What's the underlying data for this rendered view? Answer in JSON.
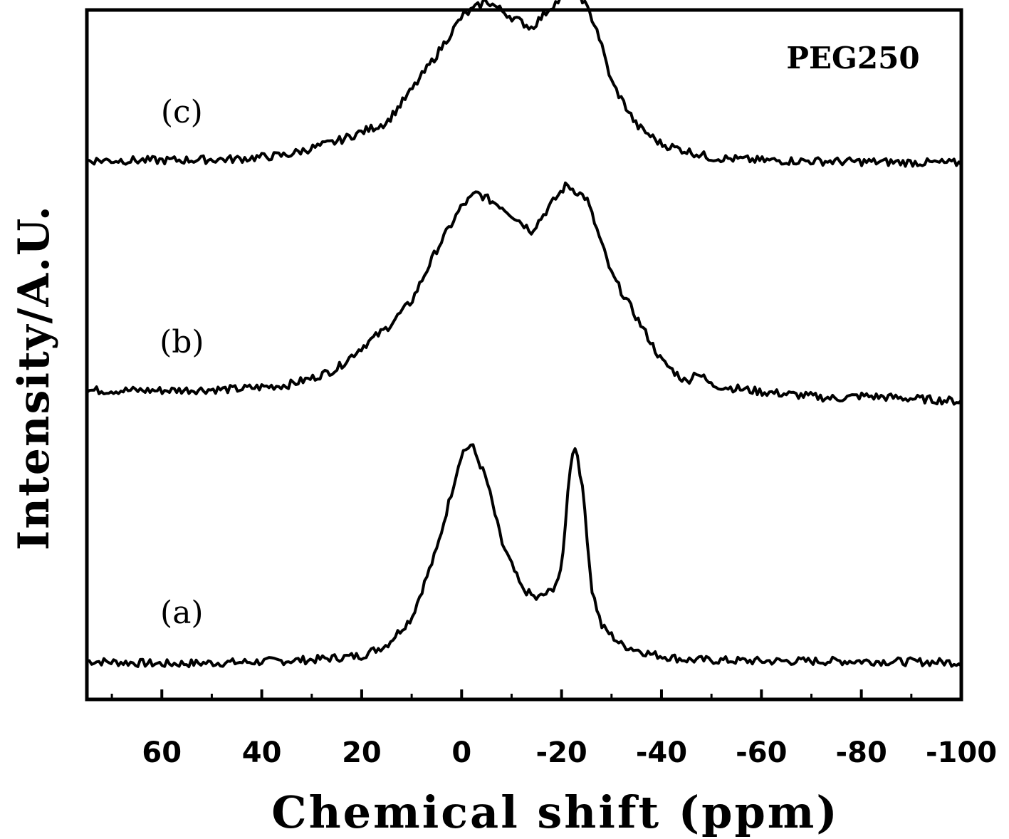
{
  "chart_data": {
    "type": "line",
    "xlabel": "Chemical shift (ppm)",
    "ylabel": "Intensity/A.U.",
    "xlim": [
      75,
      -100
    ],
    "x_reversed": true,
    "x_ticks": [
      60,
      40,
      20,
      0,
      -20,
      -40,
      -60,
      -80,
      -100
    ],
    "x_tick_labels": [
      "60",
      "40",
      "20",
      "0",
      "-20",
      "-40",
      "-60",
      "-80",
      "-100"
    ],
    "y_ticks_shown": false,
    "grid": false,
    "legend": "none",
    "annotation": "PEG250",
    "series": [
      {
        "label": "(a)",
        "offset": 0,
        "points": [
          [
            75,
            0.01
          ],
          [
            60,
            0.0
          ],
          [
            45,
            0.005
          ],
          [
            30,
            0.015
          ],
          [
            20,
            0.03
          ],
          [
            15,
            0.07
          ],
          [
            10,
            0.17
          ],
          [
            5,
            0.42
          ],
          [
            0,
            0.78
          ],
          [
            -2,
            0.81
          ],
          [
            -5,
            0.68
          ],
          [
            -8,
            0.45
          ],
          [
            -12,
            0.28
          ],
          [
            -15,
            0.24
          ],
          [
            -18,
            0.27
          ],
          [
            -20,
            0.34
          ],
          [
            -21,
            0.58
          ],
          [
            -22,
            0.78
          ],
          [
            -23,
            0.8
          ],
          [
            -24.5,
            0.6
          ],
          [
            -26,
            0.28
          ],
          [
            -28,
            0.14
          ],
          [
            -32,
            0.07
          ],
          [
            -38,
            0.035
          ],
          [
            -45,
            0.015
          ],
          [
            -60,
            0.01
          ],
          [
            -80,
            0.01
          ],
          [
            -100,
            0.005
          ]
        ]
      },
      {
        "label": "(b)",
        "offset": 1.0,
        "points": [
          [
            75,
            0.01
          ],
          [
            60,
            0.01
          ],
          [
            45,
            0.015
          ],
          [
            35,
            0.03
          ],
          [
            30,
            0.055
          ],
          [
            25,
            0.09
          ],
          [
            20,
            0.17
          ],
          [
            15,
            0.24
          ],
          [
            10,
            0.34
          ],
          [
            5,
            0.53
          ],
          [
            0,
            0.69
          ],
          [
            -3,
            0.74
          ],
          [
            -8,
            0.69
          ],
          [
            -14,
            0.6
          ],
          [
            -18,
            0.7
          ],
          [
            -21,
            0.77
          ],
          [
            -25,
            0.72
          ],
          [
            -30,
            0.44
          ],
          [
            -35,
            0.28
          ],
          [
            -40,
            0.12
          ],
          [
            -45,
            0.04
          ],
          [
            -47,
            0.08
          ],
          [
            -50,
            0.03
          ],
          [
            -60,
            0.005
          ],
          [
            -75,
            -0.02
          ],
          [
            -80,
            -0.01
          ],
          [
            -90,
            -0.02
          ],
          [
            -100,
            -0.03
          ]
        ]
      },
      {
        "label": "(c)",
        "offset": 1.85,
        "points": [
          [
            75,
            0.01
          ],
          [
            60,
            0.01
          ],
          [
            45,
            0.015
          ],
          [
            35,
            0.03
          ],
          [
            25,
            0.08
          ],
          [
            15,
            0.15
          ],
          [
            10,
            0.27
          ],
          [
            5,
            0.4
          ],
          [
            0,
            0.54
          ],
          [
            -5,
            0.6
          ],
          [
            -10,
            0.54
          ],
          [
            -14,
            0.5
          ],
          [
            -18,
            0.58
          ],
          [
            -23,
            0.65
          ],
          [
            -27,
            0.5
          ],
          [
            -30,
            0.3
          ],
          [
            -35,
            0.14
          ],
          [
            -40,
            0.07
          ],
          [
            -50,
            0.02
          ],
          [
            -60,
            0.01
          ],
          [
            -80,
            0.005
          ],
          [
            -100,
            0.0
          ]
        ]
      }
    ]
  }
}
